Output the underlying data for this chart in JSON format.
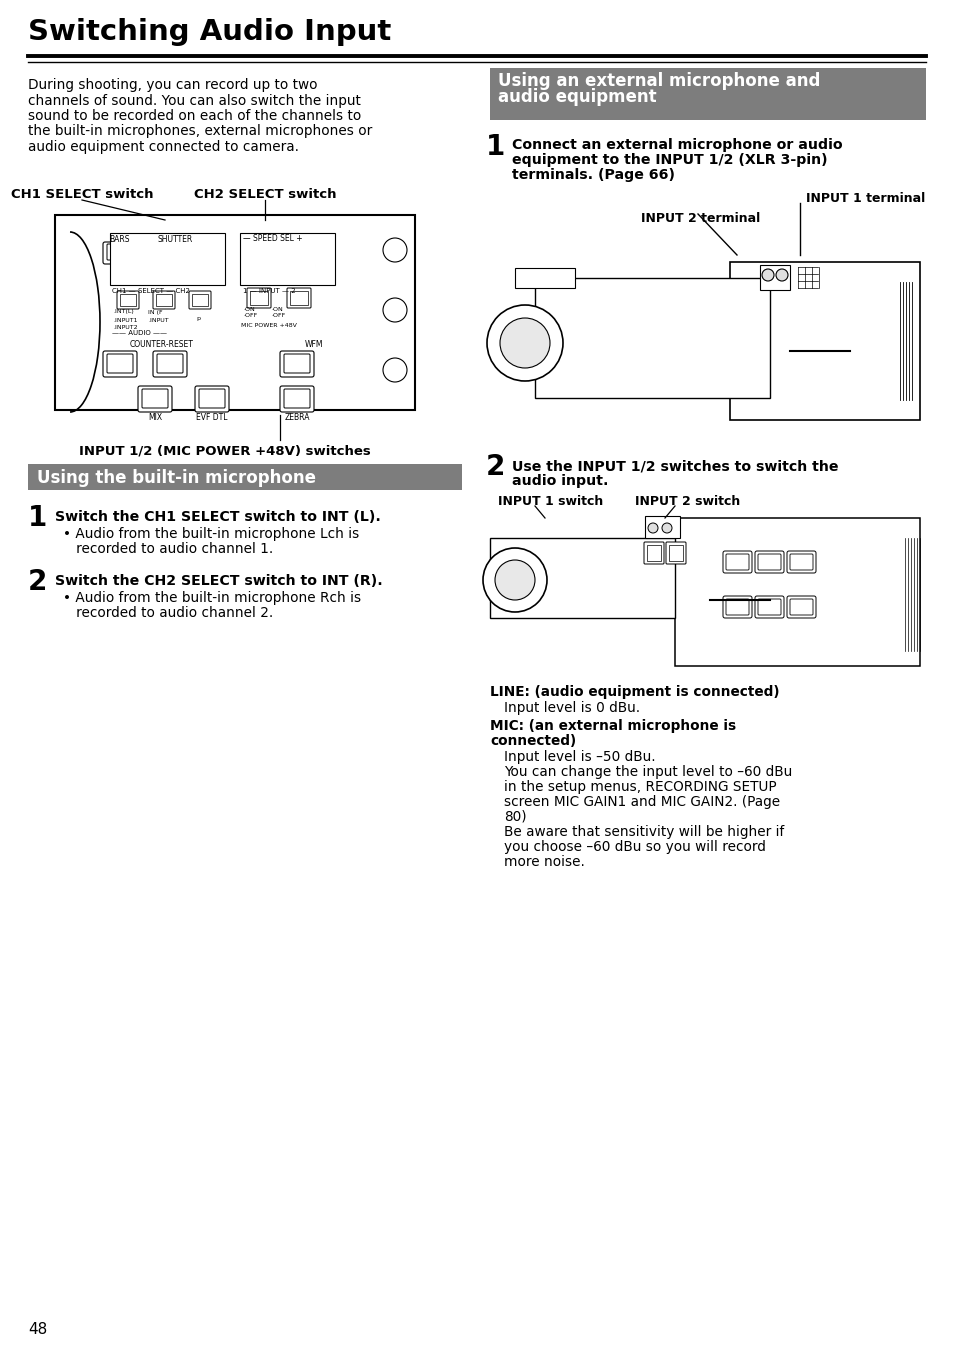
{
  "title": "Switching Audio Input",
  "bg_color": "#ffffff",
  "page_number": "48",
  "intro_text_lines": [
    "During shooting, you can record up to two",
    "channels of sound. You can also switch the input",
    "sound to be recorded on each of the channels to",
    "the built-in microphones, external microphones or",
    "audio equipment connected to camera."
  ],
  "label_ch1": "CH1 SELECT switch",
  "label_ch2": "CH2 SELECT switch",
  "label_input12": "INPUT 1/2 (MIC POWER +48V) switches",
  "label_input1_terminal": "INPUT 1 terminal",
  "label_input2_terminal": "INPUT 2 terminal",
  "label_input1_switch": "INPUT 1 switch",
  "label_input2_switch": "INPUT 2 switch",
  "section_left_title": "Using the built-in microphone",
  "section_right_title_1": "Using an external microphone and",
  "section_right_title_2": "audio equipment",
  "section_gray": "#7d7d7d",
  "step1_left": "Switch the CH1 SELECT switch to INT (L).",
  "step1_left_b1": "• Audio from the built-in microphone Lch is",
  "step1_left_b2": "   recorded to audio channel 1.",
  "step2_left": "Switch the CH2 SELECT switch to INT (R).",
  "step2_left_b1": "• Audio from the built-in microphone Rch is",
  "step2_left_b2": "   recorded to audio channel 2.",
  "step1_right_l1": "Connect an external microphone or audio",
  "step1_right_l2": "equipment to the INPUT 1/2 (XLR 3-pin)",
  "step1_right_l3": "terminals. (Page 66)",
  "step2_right_l1": "Use the INPUT 1/2 switches to switch the",
  "step2_right_l2": "audio input.",
  "line1_bold": "LINE: (audio equipment is connected)",
  "line1_text": "Input level is 0 dBu.",
  "line2_bold_1": "MIC: (an external microphone is",
  "line2_bold_2": "connected)",
  "line2_t1": "Input level is –50 dBu.",
  "line2_t2": "You can change the input level to –60 dBu",
  "line2_t3": "in the setup menus, RECORDING SETUP",
  "line2_t4": "screen MIC GAIN1 and MIC GAIN2. (Page",
  "line2_t5": "80)",
  "line2_t6": "Be aware that sensitivity will be higher if",
  "line2_t7": "you choose –60 dBu so you will record",
  "line2_t8": "more noise."
}
